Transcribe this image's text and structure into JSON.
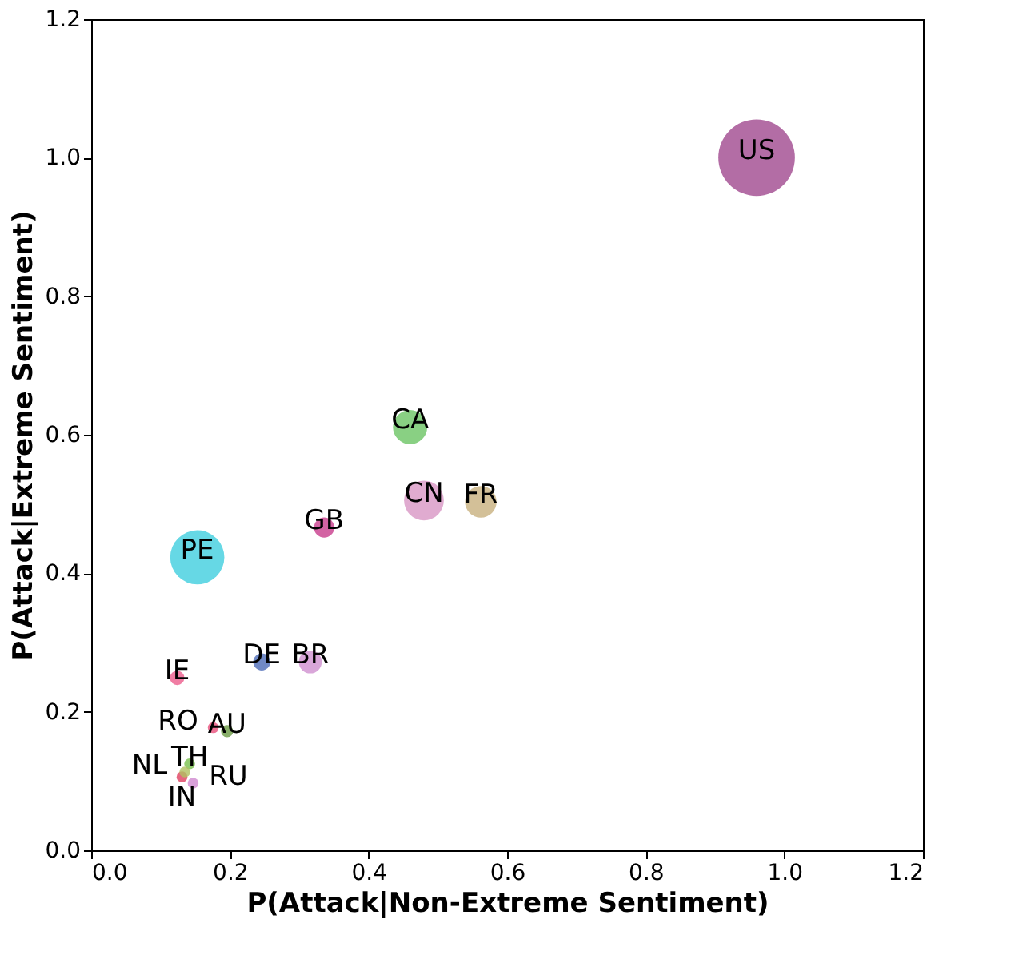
{
  "chart_data": {
    "type": "bubble",
    "xlabel": "P(Attack|Non-Extreme Sentiment)",
    "ylabel": "P(Attack|Extreme Sentiment)",
    "xlim": [
      0.0,
      1.2
    ],
    "ylim": [
      0.0,
      1.2
    ],
    "xticks": [
      {
        "value": 0,
        "label": "0.0"
      },
      0.2,
      0.4,
      0.6,
      0.8,
      {
        "value": 1,
        "label": "1.0"
      },
      1.2
    ],
    "yticks": [
      {
        "value": 0,
        "label": "0.0"
      },
      0.2,
      0.4,
      0.6,
      0.8,
      {
        "value": 1,
        "label": "1.0"
      },
      1.2
    ],
    "grid": false,
    "series": [
      {
        "name": "US",
        "color": "#a0488e",
        "x": [
          0.96
        ],
        "values": [
          1.0
        ],
        "sizes": [
          1
        ]
      },
      {
        "name": "PE",
        "color": "#40cede",
        "x": [
          0.153
        ],
        "values": [
          0.423
        ],
        "sizes": [
          0.5
        ]
      },
      {
        "name": "CA",
        "color": "#6cc464",
        "x": [
          0.46
        ],
        "values": [
          0.611
        ],
        "sizes": [
          0.2
        ]
      },
      {
        "name": "CN",
        "color": "#d896c4",
        "x": [
          0.48
        ],
        "values": [
          0.505
        ],
        "sizes": [
          0.27
        ]
      },
      {
        "name": "FR",
        "color": "#c8b07e",
        "x": [
          0.562
        ],
        "values": [
          0.503
        ],
        "sizes": [
          0.17
        ]
      },
      {
        "name": "GB",
        "color": "#c83c8c",
        "x": [
          0.336
        ],
        "values": [
          0.466
        ],
        "sizes": [
          0.07
        ]
      },
      {
        "name": "DE",
        "color": "#4c6cb8",
        "x": [
          0.246
        ],
        "values": [
          0.272
        ],
        "sizes": [
          0.05
        ]
      },
      {
        "name": "BR",
        "color": "#d090d0",
        "x": [
          0.316
        ],
        "values": [
          0.272
        ],
        "sizes": [
          0.09
        ]
      },
      {
        "name": "IE",
        "color": "#ec5c8c",
        "x": [
          0.124
        ],
        "values": [
          0.249
        ],
        "sizes": [
          0.035
        ]
      },
      {
        "name": "RO",
        "color": "#e8507c",
        "x": [
          0.176
        ],
        "values": [
          0.177
        ],
        "sizes": [
          0.02
        ]
      },
      {
        "name": "AU",
        "color": "#6a9a44",
        "x": [
          0.196
        ],
        "values": [
          0.172
        ],
        "sizes": [
          0.025
        ]
      },
      {
        "name": "TH",
        "color": "#78c04c",
        "x": [
          0.142
        ],
        "values": [
          0.125
        ],
        "sizes": [
          0.02
        ]
      },
      {
        "name": "IN",
        "color": "#e04060",
        "x": [
          0.131
        ],
        "values": [
          0.106
        ],
        "sizes": [
          0.02
        ]
      },
      {
        "name": "NL",
        "color": "#b0c060",
        "x": [
          0.135
        ],
        "values": [
          0.113
        ],
        "sizes": [
          0.02
        ]
      },
      {
        "name": "RU",
        "color": "#d088d0",
        "x": [
          0.147
        ],
        "values": [
          0.097
        ],
        "sizes": [
          0.02
        ]
      }
    ]
  }
}
